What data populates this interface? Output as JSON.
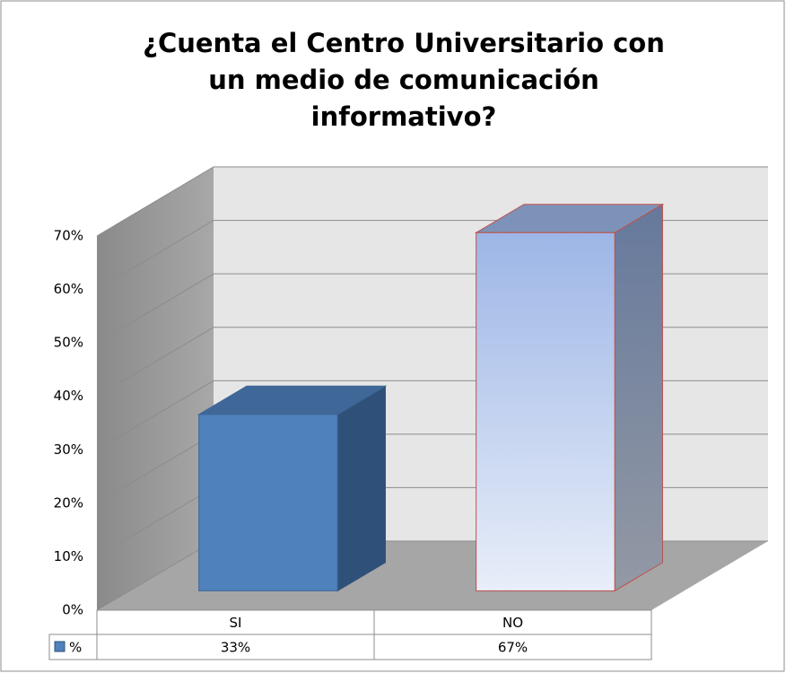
{
  "chart_data": {
    "type": "bar3d",
    "title": "¿Cuenta el Centro Universitario con un medio de comunicación informativo?",
    "categories": [
      "SI",
      "NO"
    ],
    "series": [
      {
        "name": "%",
        "values": [
          33,
          67
        ],
        "value_labels": [
          "33%",
          "67%"
        ]
      }
    ],
    "colors": [
      "#4f81bd",
      "#a4bde8"
    ],
    "ylim": [
      0,
      70
    ],
    "yticks": [
      {
        "value": 0,
        "label": "0%"
      },
      {
        "value": 10,
        "label": "10%"
      },
      {
        "value": 20,
        "label": "20%"
      },
      {
        "value": 30,
        "label": "30%"
      },
      {
        "value": 40,
        "label": "40%"
      },
      {
        "value": 50,
        "label": "50%"
      },
      {
        "value": 60,
        "label": "60%"
      },
      {
        "value": 70,
        "label": "70%"
      }
    ],
    "grid": true
  }
}
